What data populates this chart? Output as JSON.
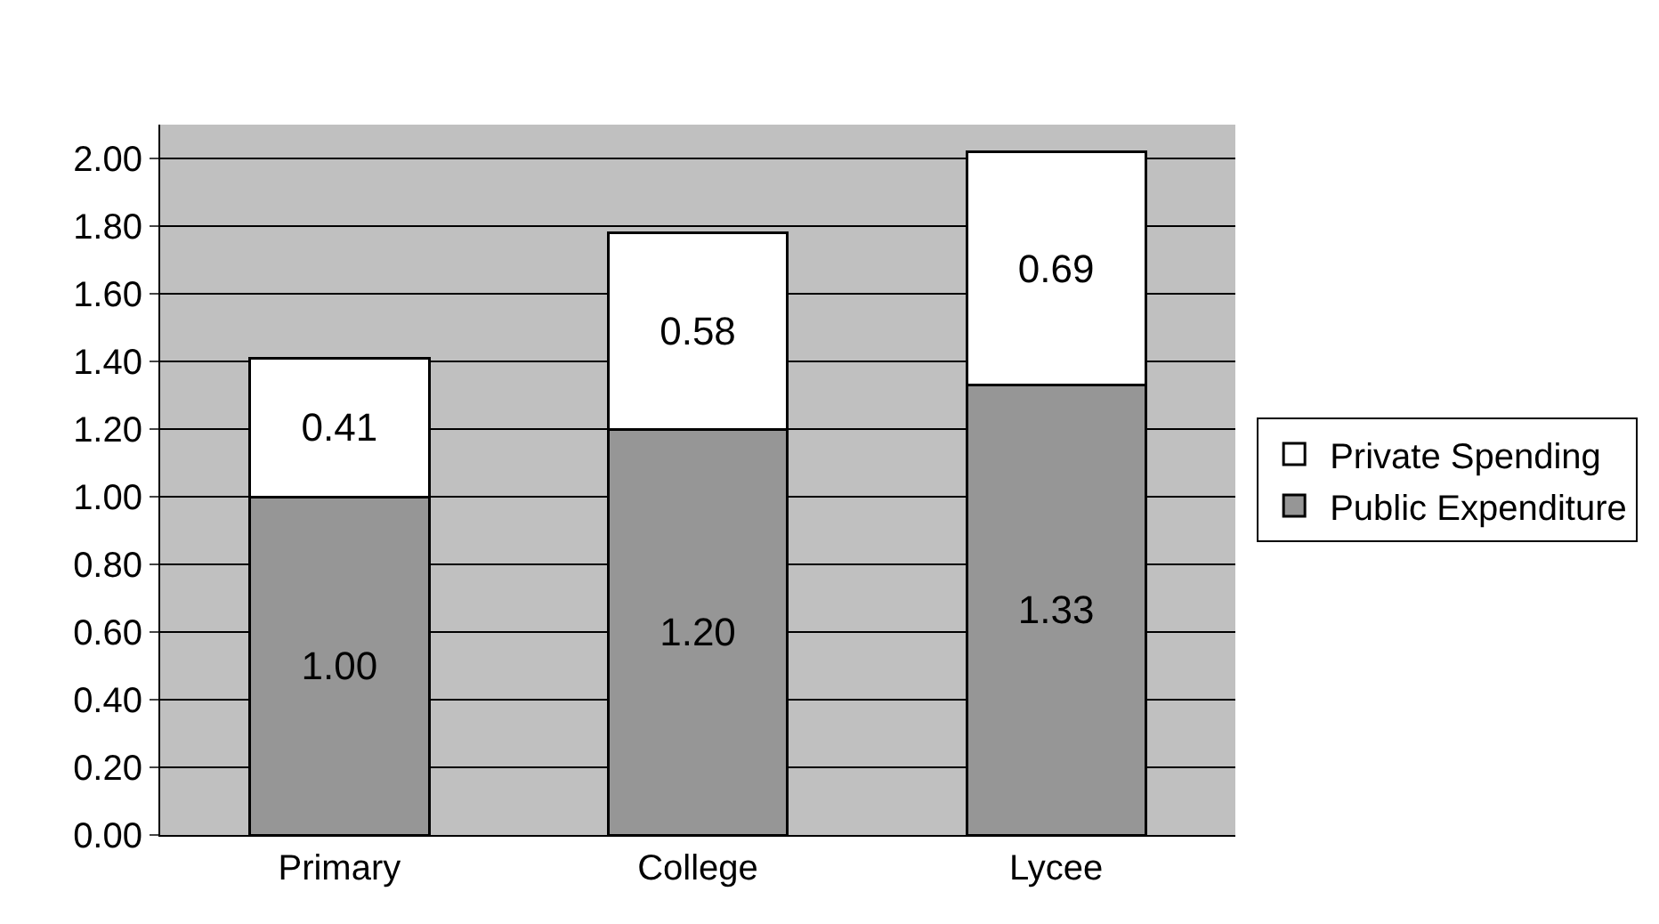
{
  "chart_data": {
    "type": "bar",
    "stacked": true,
    "categories": [
      "Primary",
      "College",
      "Lycee"
    ],
    "series": [
      {
        "name": "Public Expenditure",
        "color": "#969696",
        "values": [
          1.0,
          1.2,
          1.33
        ],
        "value_labels": [
          "1.00",
          "1.20",
          "1.33"
        ]
      },
      {
        "name": "Private Spending",
        "color": "#ffffff",
        "values": [
          0.41,
          0.58,
          0.69
        ],
        "value_labels": [
          "0.41",
          "0.58",
          "0.69"
        ]
      }
    ],
    "ylim": [
      0,
      2.1
    ],
    "yticks": [
      {
        "value": 0,
        "label": "0.00"
      },
      {
        "value": 0.2,
        "label": "0.20"
      },
      {
        "value": 0.4,
        "label": "0.40"
      },
      {
        "value": 0.6,
        "label": "0.60"
      },
      {
        "value": 0.8,
        "label": "0.80"
      },
      {
        "value": 1,
        "label": "1.00"
      },
      {
        "value": 1.2,
        "label": "1.20"
      },
      {
        "value": 1.4,
        "label": "1.40"
      },
      {
        "value": 1.6,
        "label": "1.60"
      },
      {
        "value": 1.8,
        "label": "1.80"
      },
      {
        "value": 2,
        "label": "2.00"
      }
    ],
    "grid": "y",
    "legend": "right"
  }
}
